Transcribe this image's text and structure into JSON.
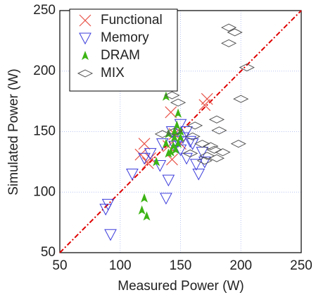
{
  "chart_data": {
    "type": "scatter",
    "xlabel": "Measured Power (W)",
    "ylabel": "Simulated Power (W)",
    "xlim": [
      50,
      250
    ],
    "ylim": [
      50,
      250
    ],
    "xticks": [
      50,
      100,
      150,
      200,
      250
    ],
    "yticks": [
      50,
      100,
      150,
      200,
      250
    ],
    "grid": true,
    "legend": "upper left",
    "identity_line": {
      "color": "#e00000"
    },
    "series": [
      {
        "name": "Functional",
        "color": "#e8554a",
        "marker": "x",
        "x": [
          172,
          170,
          142,
          145,
          120,
          117,
          125,
          140,
          150,
          143,
          123
        ],
        "y": [
          177,
          172,
          166,
          148,
          140,
          131,
          128,
          138,
          140,
          127,
          124
        ]
      },
      {
        "name": "Memory",
        "color": "#3c3cdc",
        "marker": "triangle-down",
        "x": [
          92,
          90,
          88,
          110,
          120,
          133,
          140,
          138,
          145,
          148,
          150,
          152,
          155,
          160,
          163,
          165,
          168,
          155,
          125,
          135,
          143,
          170,
          150,
          158
        ],
        "y": [
          65,
          90,
          86,
          115,
          128,
          122,
          110,
          95,
          138,
          142,
          156,
          145,
          150,
          140,
          123,
          115,
          133,
          128,
          132,
          140,
          150,
          125,
          135,
          142
        ]
      },
      {
        "name": "DRAM",
        "color": "#3cb414",
        "marker": "triangle-up",
        "x": [
          138,
          148,
          140,
          145,
          147,
          150,
          144,
          142,
          146,
          148,
          138,
          130,
          122,
          118,
          120,
          140,
          150,
          145
        ],
        "y": [
          179,
          165,
          148,
          150,
          155,
          145,
          138,
          133,
          135,
          140,
          140,
          125,
          80,
          85,
          95,
          132,
          150,
          145
        ]
      },
      {
        "name": "MIX",
        "color": "#555555",
        "marker": "diamond",
        "x": [
          190,
          195,
          190,
          205,
          200,
          198,
          143,
          148,
          135,
          145,
          180,
          182,
          160,
          162,
          175,
          178,
          172,
          170,
          168,
          158,
          180,
          185
        ],
        "y": [
          236,
          232,
          223,
          203,
          177,
          140,
          180,
          174,
          148,
          150,
          160,
          151,
          146,
          155,
          138,
          135,
          130,
          126,
          140,
          132,
          128,
          133
        ]
      }
    ]
  }
}
